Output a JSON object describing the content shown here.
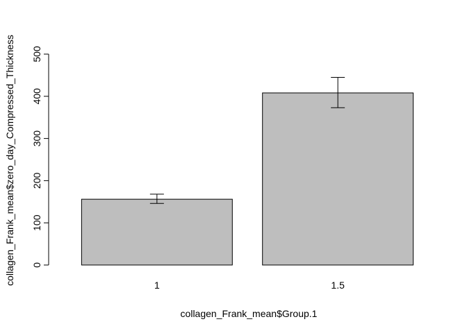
{
  "chart_data": {
    "type": "bar",
    "categories": [
      "1",
      "1.5"
    ],
    "values": [
      156,
      408
    ],
    "error_bars": {
      "lower": [
        146,
        373
      ],
      "upper": [
        168,
        445
      ]
    },
    "xlabel": "collagen_Frank_mean$Group.1",
    "ylabel": "collagen_Frank_mean$zero_day_Compressed_Thickness",
    "ylim": [
      0,
      500
    ],
    "yticks": [
      0,
      100,
      200,
      300,
      400,
      500
    ],
    "grid": false,
    "legend": "none",
    "colors": {
      "bar_fill": "#bebebe",
      "bar_stroke": "#000000",
      "axis": "#000000",
      "error_bar": "#000000"
    }
  }
}
